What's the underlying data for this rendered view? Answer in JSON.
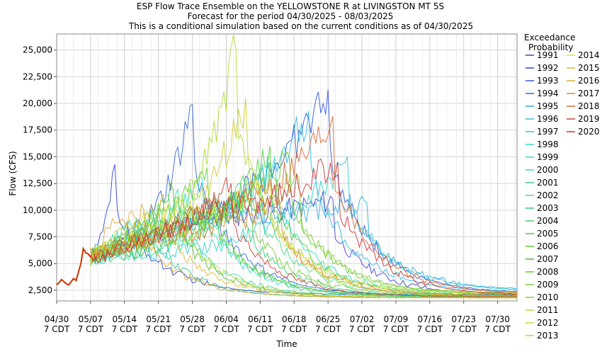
{
  "chart_data": {
    "type": "line",
    "title": "ESP Flow Trace Ensemble on the YELLOWSTONE R at LIVINGSTON MT 5S",
    "subtitle": "Forecast for the period 04/30/2025 - 08/03/2025",
    "subtitle2": "This is a conditional simulation based on the current conditions as of 04/30/2025",
    "xlabel": "Time",
    "ylabel": "Flow (CFS)",
    "ylim": [
      1500,
      26500
    ],
    "yticks": [
      "2,500",
      "5,000",
      "7,500",
      "10,000",
      "12,500",
      "15,000",
      "17,500",
      "20,000",
      "22,500",
      "25,000"
    ],
    "ytick_values": [
      2500,
      5000,
      7500,
      10000,
      12500,
      15000,
      17500,
      20000,
      22500,
      25000
    ],
    "xrange_days": [
      0,
      95
    ],
    "xtick_days": [
      0,
      7,
      14,
      21,
      28,
      35,
      42,
      49,
      56,
      63,
      70,
      77,
      84,
      91
    ],
    "xticks_line1": [
      "04/30",
      "05/07",
      "05/14",
      "05/21",
      "05/28",
      "06/04",
      "06/11",
      "06/18",
      "06/25",
      "07/02",
      "07/09",
      "07/16",
      "07/23",
      "07/30"
    ],
    "xticks_line2": [
      "7 CDT",
      "7 CDT",
      "7 CDT",
      "7 CDT",
      "7 CDT",
      "7 CDT",
      "7 CDT",
      "7 CDT",
      "7 CDT",
      "7 CDT",
      "7 CDT",
      "7 CDT",
      "7 CDT",
      "7 CDT"
    ],
    "grid": true,
    "legend_title_1": "Exceedance",
    "legend_title_2": "Probability",
    "legend_placement": "right",
    "observed": {
      "color": "#cc3300",
      "x": [
        0,
        0.5,
        1,
        1.5,
        2,
        2.5,
        3,
        3.5,
        4,
        4.5,
        5,
        5.5,
        6,
        6.5,
        7
      ],
      "y": [
        3000,
        3200,
        3500,
        3300,
        3100,
        3000,
        3300,
        3600,
        3400,
        4200,
        5000,
        6400,
        6000,
        5900,
        5600
      ]
    },
    "series": [
      {
        "name": "1991",
        "color": "#4444cc",
        "peak_x": 57,
        "peak_y": 11000,
        "end_y": 2000
      },
      {
        "name": "1992",
        "color": "#3344cc",
        "peak_x": 12,
        "peak_y": 14300,
        "end_y": 2100
      },
      {
        "name": "1993",
        "color": "#3355dd",
        "peak_x": 56,
        "peak_y": 21300,
        "end_y": 2200
      },
      {
        "name": "1994",
        "color": "#3366dd",
        "peak_x": 28,
        "peak_y": 19900,
        "end_y": 2000
      },
      {
        "name": "1995",
        "color": "#33aadd",
        "peak_x": 64,
        "peak_y": 10700,
        "end_y": 2500
      },
      {
        "name": "1996",
        "color": "#33bbdd",
        "peak_x": 52,
        "peak_y": 19300,
        "end_y": 2300
      },
      {
        "name": "1997",
        "color": "#33cccc",
        "peak_x": 60,
        "peak_y": 15000,
        "end_y": 2400
      },
      {
        "name": "1998",
        "color": "#33ddcc",
        "peak_x": 30,
        "peak_y": 13000,
        "end_y": 2000
      },
      {
        "name": "1999",
        "color": "#33ddbb",
        "peak_x": 45,
        "peak_y": 15000,
        "end_y": 2100
      },
      {
        "name": "2000",
        "color": "#44ddaa",
        "peak_x": 25,
        "peak_y": 12000,
        "end_y": 1900
      },
      {
        "name": "2001",
        "color": "#33cc99",
        "peak_x": 20,
        "peak_y": 9500,
        "end_y": 1800
      },
      {
        "name": "2002",
        "color": "#44dd88",
        "peak_x": 42,
        "peak_y": 13000,
        "end_y": 2000
      },
      {
        "name": "2003",
        "color": "#33cc77",
        "peak_x": 38,
        "peak_y": 12500,
        "end_y": 1900
      },
      {
        "name": "2004",
        "color": "#44cc66",
        "peak_x": 33,
        "peak_y": 11000,
        "end_y": 1850
      },
      {
        "name": "2005",
        "color": "#55cc44",
        "peak_x": 44,
        "peak_y": 16000,
        "end_y": 2000
      },
      {
        "name": "2006",
        "color": "#66cc33",
        "peak_x": 31,
        "peak_y": 14000,
        "end_y": 1900
      },
      {
        "name": "2007",
        "color": "#55bb33",
        "peak_x": 24,
        "peak_y": 12000,
        "end_y": 1800
      },
      {
        "name": "2008",
        "color": "#66cc33",
        "peak_x": 48,
        "peak_y": 15000,
        "end_y": 2200
      },
      {
        "name": "2009",
        "color": "#77cc33",
        "peak_x": 40,
        "peak_y": 12000,
        "end_y": 2000
      },
      {
        "name": "2010",
        "color": "#88cc33",
        "peak_x": 50,
        "peak_y": 13000,
        "end_y": 2100
      },
      {
        "name": "2011",
        "color": "#aadd33",
        "peak_x": 37,
        "peak_y": 25100,
        "end_y": 2300
      },
      {
        "name": "2012",
        "color": "#bbdd33",
        "peak_x": 26,
        "peak_y": 11000,
        "end_y": 1800
      },
      {
        "name": "2013",
        "color": "#cccc33",
        "peak_x": 39,
        "peak_y": 20500,
        "end_y": 1900
      },
      {
        "name": "2014",
        "color": "#dddd44",
        "peak_x": 44,
        "peak_y": 12500,
        "end_y": 2200
      },
      {
        "name": "2015",
        "color": "#ddbb33",
        "peak_x": 22,
        "peak_y": 11500,
        "end_y": 1800
      },
      {
        "name": "2016",
        "color": "#ddaa33",
        "peak_x": 18,
        "peak_y": 10000,
        "end_y": 1800
      },
      {
        "name": "2017",
        "color": "#dd8833",
        "peak_x": 46,
        "peak_y": 11000,
        "end_y": 2000
      },
      {
        "name": "2018",
        "color": "#dd6633",
        "peak_x": 57,
        "peak_y": 18800,
        "end_y": 2100
      },
      {
        "name": "2019",
        "color": "#cc4433",
        "peak_x": 36,
        "peak_y": 12500,
        "end_y": 1900
      },
      {
        "name": "2020",
        "color": "#cc3333",
        "peak_x": 58,
        "peak_y": 14500,
        "end_y": 2000
      }
    ]
  }
}
